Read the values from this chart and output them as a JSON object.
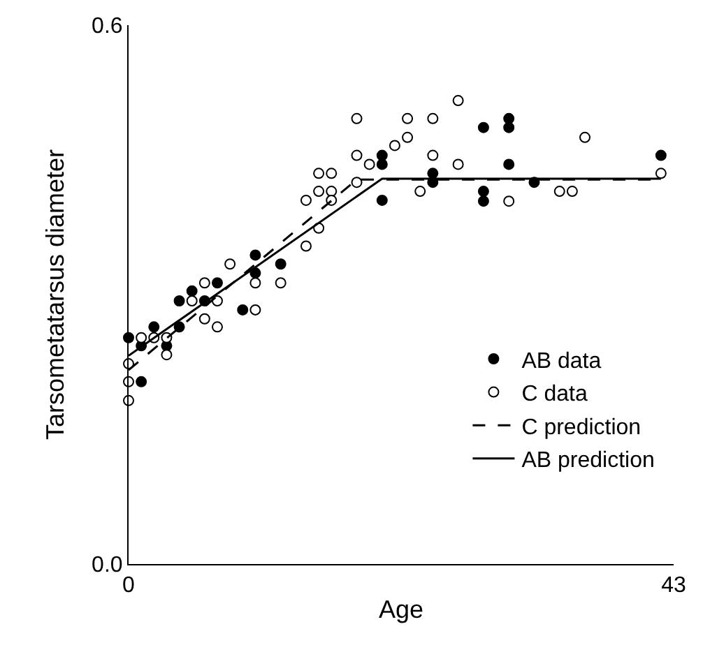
{
  "chart_data": {
    "type": "scatter",
    "xlabel": "Age",
    "ylabel": "Tarsometatarsus diameter",
    "xlim": [
      0,
      43
    ],
    "xticks": [
      0,
      43
    ],
    "ylim": [
      0,
      0.6
    ],
    "yticks": [
      {
        "value": 0,
        "label": "0.0"
      },
      0.6
    ],
    "legend": "bottom right",
    "series": [
      {
        "name": "AB data",
        "marker": "circle",
        "color": "#000000",
        "x": [
          0,
          1,
          1,
          2,
          3,
          4,
          4,
          5,
          6,
          7,
          9,
          10,
          10,
          12,
          20,
          20,
          20,
          24,
          24,
          28,
          28,
          28,
          30,
          30,
          30,
          32,
          42
        ],
        "values": [
          0.252,
          0.243,
          0.203,
          0.264,
          0.243,
          0.264,
          0.293,
          0.304,
          0.293,
          0.313,
          0.283,
          0.344,
          0.324,
          0.334,
          0.455,
          0.445,
          0.405,
          0.435,
          0.425,
          0.486,
          0.415,
          0.404,
          0.496,
          0.486,
          0.445,
          0.425,
          0.455
        ]
      },
      {
        "name": "C data",
        "marker": "circle",
        "color": "#ffffff",
        "x": [
          0,
          0,
          0,
          1,
          2,
          3,
          3,
          5,
          6,
          6,
          7,
          7,
          8,
          10,
          10,
          12,
          14,
          14,
          15,
          15,
          15,
          16,
          16,
          16,
          18,
          18,
          18,
          19,
          21,
          22,
          22,
          23,
          24,
          24,
          26,
          26,
          30,
          34,
          35,
          36,
          42
        ],
        "values": [
          0.223,
          0.203,
          0.182,
          0.252,
          0.252,
          0.252,
          0.233,
          0.293,
          0.313,
          0.273,
          0.293,
          0.264,
          0.334,
          0.313,
          0.283,
          0.313,
          0.405,
          0.354,
          0.435,
          0.415,
          0.374,
          0.435,
          0.415,
          0.405,
          0.496,
          0.455,
          0.425,
          0.445,
          0.466,
          0.496,
          0.475,
          0.415,
          0.496,
          0.455,
          0.516,
          0.445,
          0.404,
          0.415,
          0.415,
          0.475,
          0.435
        ]
      },
      {
        "name": "C prediction",
        "type": "line",
        "marker": "none",
        "line_style": "dashed",
        "color": "#000000",
        "x": [
          0,
          18,
          42
        ],
        "values": [
          0.216,
          0.428,
          0.428
        ]
      },
      {
        "name": "AB prediction",
        "type": "line",
        "marker": "none",
        "line_style": "solid",
        "color": "#000000",
        "x": [
          0,
          20,
          42
        ],
        "values": [
          0.232,
          0.429,
          0.429
        ]
      }
    ]
  }
}
